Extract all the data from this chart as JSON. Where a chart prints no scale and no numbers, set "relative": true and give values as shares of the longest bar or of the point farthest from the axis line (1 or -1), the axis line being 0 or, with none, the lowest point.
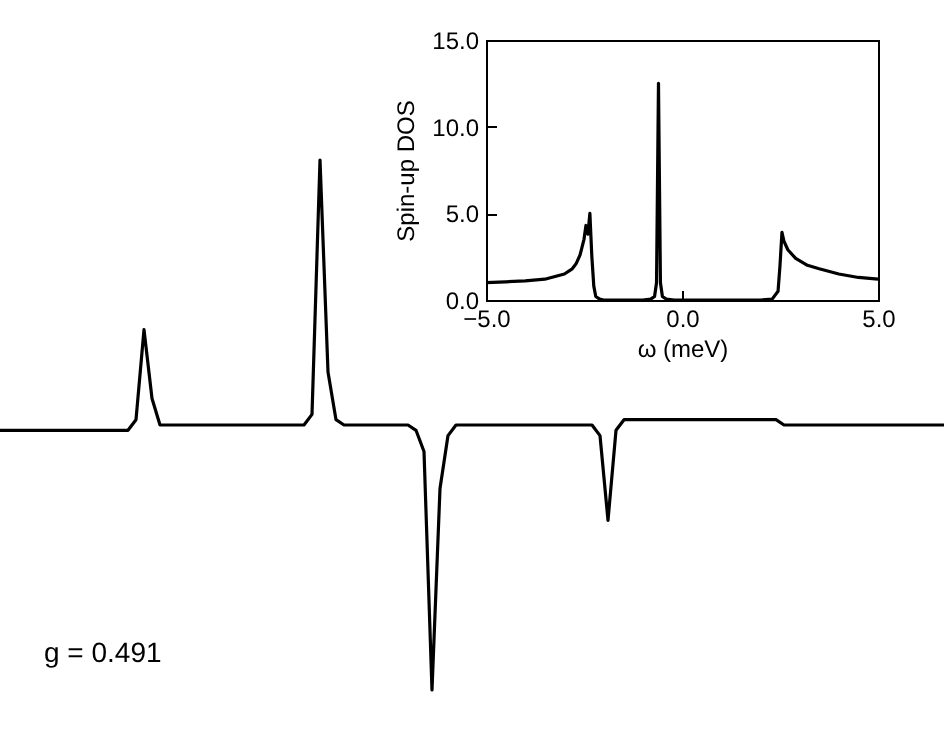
{
  "chart_data": [
    {
      "type": "line",
      "relative": true,
      "annotations": [
        "g = 0.491"
      ],
      "categories": [
        null,
        null,
        null,
        null,
        null,
        null,
        null,
        null,
        null,
        null,
        null,
        null,
        null,
        null,
        null,
        null,
        null,
        null,
        null,
        null,
        null,
        null,
        null,
        null,
        null,
        null,
        null,
        null,
        null,
        null,
        null,
        null,
        null,
        null,
        null,
        null,
        null,
        null,
        null,
        null,
        null,
        null,
        null,
        null,
        null,
        null,
        null,
        null,
        null,
        null,
        null,
        null,
        null,
        null,
        null,
        null,
        null,
        null,
        null,
        null,
        null,
        null,
        null,
        null,
        null,
        null,
        null,
        null,
        null,
        null,
        null,
        null,
        null,
        null,
        null,
        null,
        null,
        null,
        null,
        null,
        null,
        null,
        null,
        null,
        null,
        null,
        null,
        null,
        null,
        null,
        null,
        null,
        null,
        null,
        null,
        null,
        null,
        null,
        null,
        null,
        null,
        null,
        null,
        null,
        null,
        null,
        null,
        null,
        null,
        null,
        null,
        null,
        null,
        null,
        null,
        null,
        null,
        null,
        null
      ],
      "series": [
        {
          "color": "#000000",
          "values": [
            0.49,
            0.49,
            0.49,
            0.49,
            0.49,
            0.49,
            0.49,
            0.49,
            0.49,
            0.49,
            0.49,
            0.49,
            0.49,
            0.49,
            0.49,
            0.49,
            0.49,
            0.51,
            0.68,
            0.55,
            0.5,
            0.5,
            0.5,
            0.5,
            0.5,
            0.5,
            0.5,
            0.5,
            0.5,
            0.5,
            0.5,
            0.5,
            0.5,
            0.5,
            0.5,
            0.5,
            0.5,
            0.5,
            0.5,
            0.52,
            1.0,
            0.6,
            0.51,
            0.5,
            0.5,
            0.5,
            0.5,
            0.5,
            0.5,
            0.5,
            0.5,
            0.5,
            0.49,
            0.45,
            0,
            0.38,
            0.48,
            0.5,
            0.5,
            0.5,
            0.5,
            0.5,
            0.5,
            0.5,
            0.5,
            0.5,
            0.5,
            0.5,
            0.5,
            0.5,
            0.5,
            0.5,
            0.5,
            0.5,
            0.5,
            0.48,
            0.32,
            0.49,
            0.51,
            0.51,
            0.51,
            0.51,
            0.51,
            0.51,
            0.51,
            0.51,
            0.51,
            0.51,
            0.51,
            0.51,
            0.51,
            0.51,
            0.51,
            0.51,
            0.51,
            0.51,
            0.51,
            0.51,
            0.5,
            0.5,
            0.5,
            0.5,
            0.5,
            0.5,
            0.5,
            0.5,
            0.5,
            0.5,
            0.5,
            0.5,
            0.5,
            0.5,
            0.5,
            0.5,
            0.5,
            0.5,
            0.5,
            0.5,
            0.5
          ]
        }
      ]
    },
    {
      "type": "line",
      "xlabel": "ω (meV)",
      "ylabel": "Spin-up DOS",
      "xlim": [
        -5,
        5
      ],
      "xticks": [
        {
          "value": -5,
          "label": "−5.0"
        },
        {
          "value": 0,
          "label": "0.0"
        },
        {
          "value": 5,
          "label": "5.0"
        }
      ],
      "ylim": [
        0,
        15
      ],
      "yticks": [
        {
          "value": 0,
          "label": "0.0"
        },
        {
          "value": 5,
          "label": "5.0"
        },
        {
          "value": 10,
          "label": "10.0"
        },
        {
          "value": 15,
          "label": "15.0"
        }
      ],
      "x": [
        -5,
        -4.5,
        -4,
        -3.5,
        -3,
        -2.8,
        -2.7,
        -2.6,
        -2.5,
        -2.45,
        -2.4,
        -2.35,
        -2.3,
        -2.25,
        -2.2,
        -2.1,
        -2,
        -1.5,
        -1,
        -0.8,
        -0.7,
        -0.65,
        -0.6,
        -0.55,
        -0.5,
        -0.4,
        -0.2,
        0,
        1,
        2,
        2.3,
        2.45,
        2.5,
        2.55,
        2.6,
        2.7,
        2.9,
        3.2,
        3.5,
        4,
        4.5,
        5
      ],
      "series": [
        {
          "color": "#000000",
          "values": [
            1.0,
            1.05,
            1.1,
            1.2,
            1.5,
            1.8,
            2.1,
            2.6,
            3.5,
            4.3,
            3.8,
            5.0,
            2.5,
            0.8,
            0.2,
            0.05,
            0,
            0,
            0,
            0.05,
            0.2,
            1.0,
            12.5,
            1.0,
            0.2,
            0.05,
            0,
            0,
            0,
            0,
            0.05,
            0.5,
            2.0,
            3.9,
            3.4,
            2.9,
            2.4,
            2.0,
            1.8,
            1.5,
            1.3,
            1.2
          ]
        }
      ]
    }
  ]
}
